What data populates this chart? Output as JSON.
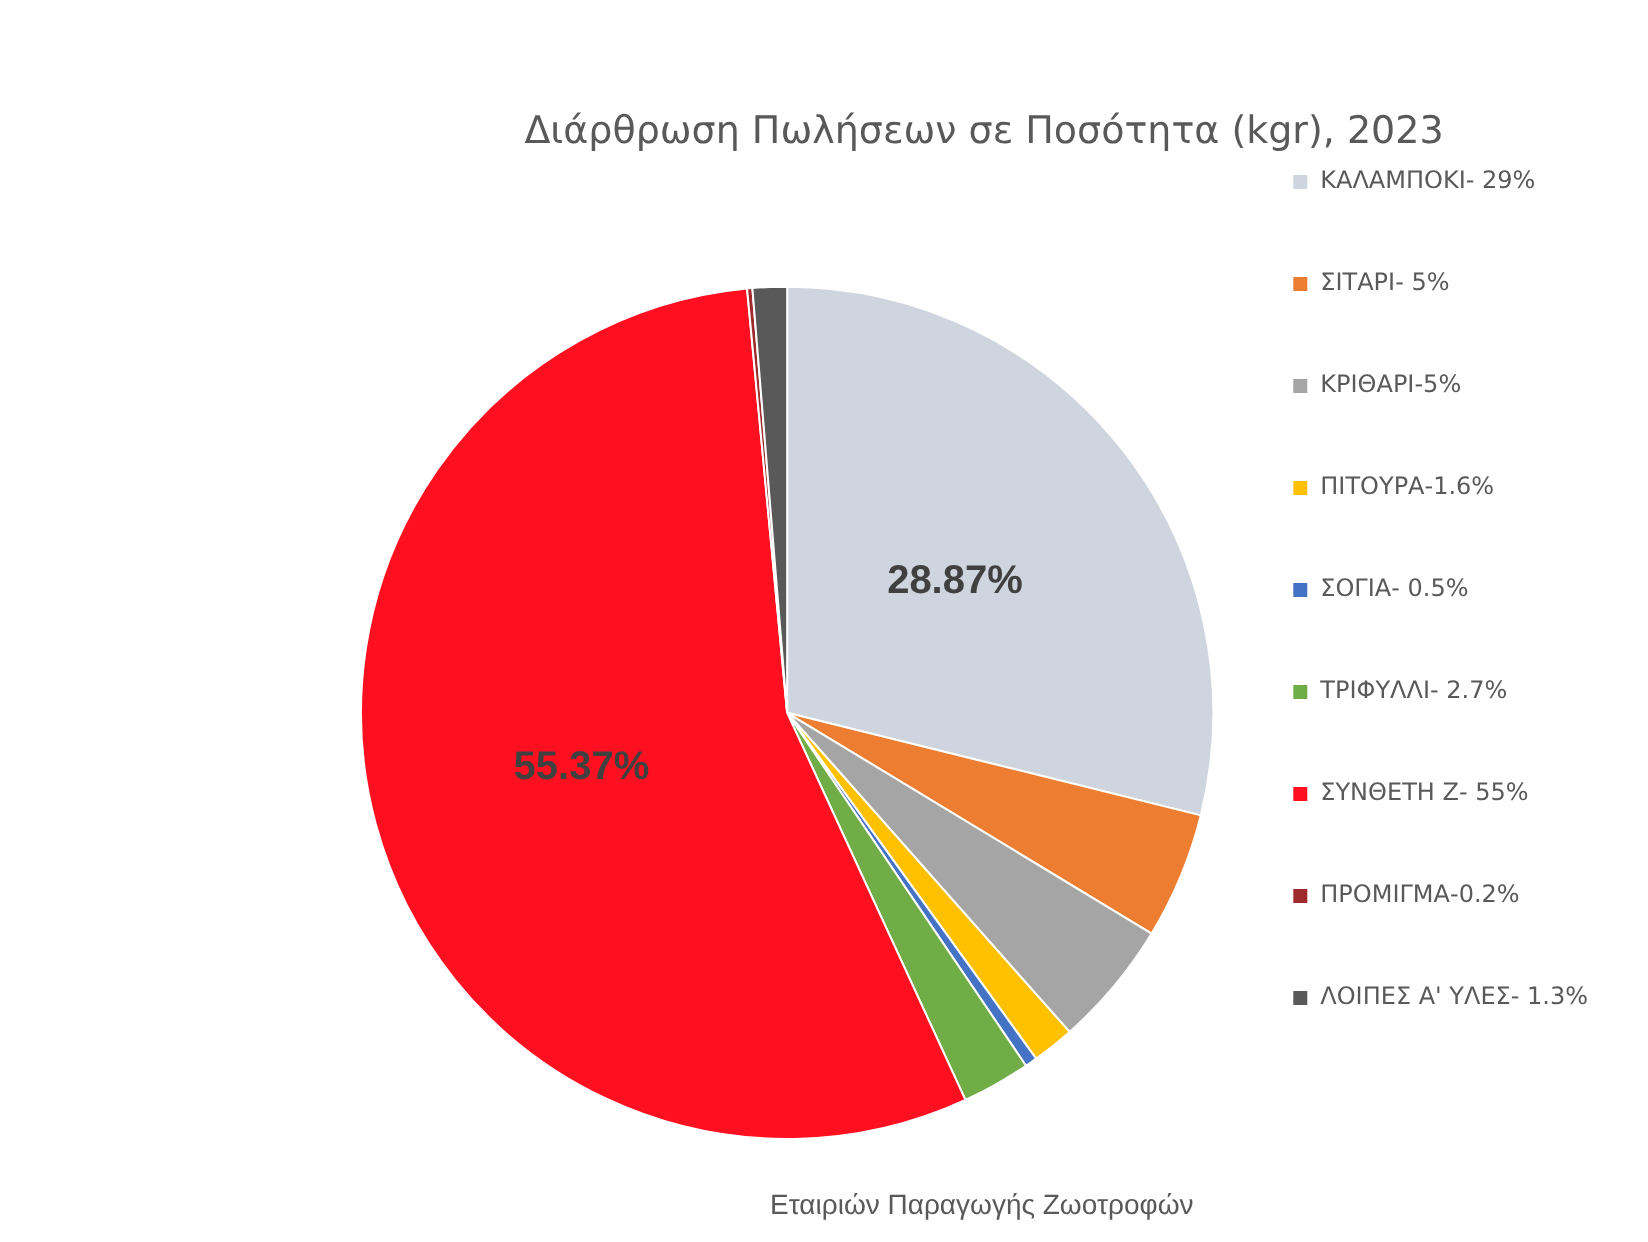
{
  "chart_data": {
    "type": "pie",
    "title": "Διάρθρωση Πωλήσεων σε Ποσότητα (kgr), 2023",
    "categories": [
      "ΚΑΛΑΜΠΟΚΙ- 29%",
      "ΣΙΤΑΡΙ- 5%",
      "ΚΡΙΘΑΡΙ-5%",
      "ΠΙΤΟΥΡΑ-1.6%",
      "ΣΟΓΙΑ- 0.5%",
      "ΤΡΙΦΥΛΛΙ- 2.7%",
      "ΣΥΝΘΕΤΗ Ζ- 55%",
      "ΠΡΟΜΙΓΜΑ-0.2%",
      "ΛΟΙΠΕΣ Α' ΥΛΕΣ- 1.3%"
    ],
    "values": [
      28.87,
      4.8,
      4.8,
      1.6,
      0.46,
      2.6,
      55.37,
      0.2,
      1.3
    ],
    "colors": [
      "#cfd5de",
      "#ed7d31",
      "#a5a5a5",
      "#ffc000",
      "#4472c4",
      "#70ad47",
      "#ff1020",
      "#9e2a2b",
      "#595959"
    ],
    "value_labels": [
      "28.87%",
      null,
      null,
      null,
      null,
      null,
      "55.37%",
      null,
      null
    ],
    "legend": "right",
    "annotations": [
      "Εταιριών Παραγωγής Ζωοτροφών"
    ]
  }
}
